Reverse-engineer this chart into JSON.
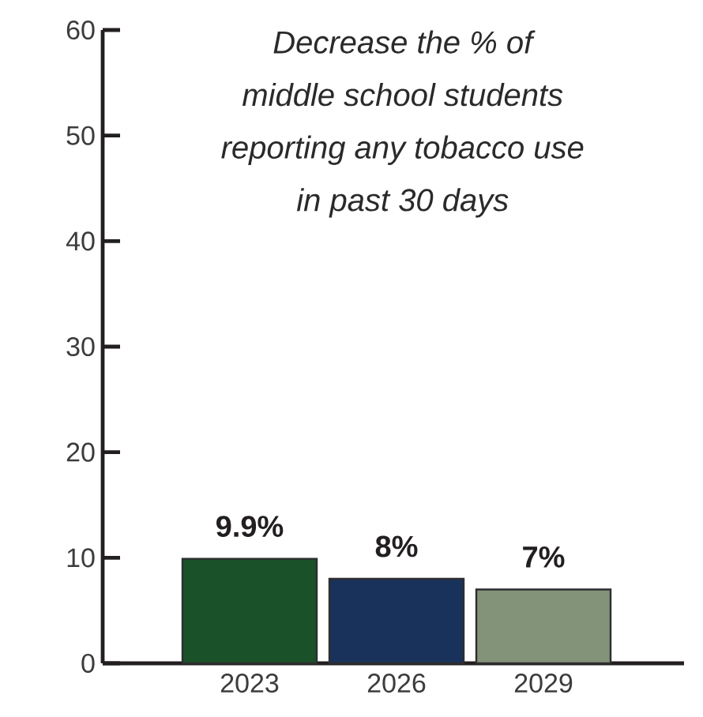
{
  "chart_data": {
    "type": "bar",
    "title": "Decrease the % of middle school students reporting any tobacco use in past 30 days",
    "categories": [
      "2023",
      "2026",
      "2029"
    ],
    "values": [
      9.9,
      8,
      7
    ],
    "colors": [
      "#1b5128",
      "#19325b",
      "#82937a"
    ],
    "value_labels": [
      "9.9%",
      "8%",
      "7%"
    ],
    "ylim": [
      0,
      60
    ],
    "yticks": [
      0,
      10,
      20,
      30,
      40,
      50,
      60
    ]
  }
}
